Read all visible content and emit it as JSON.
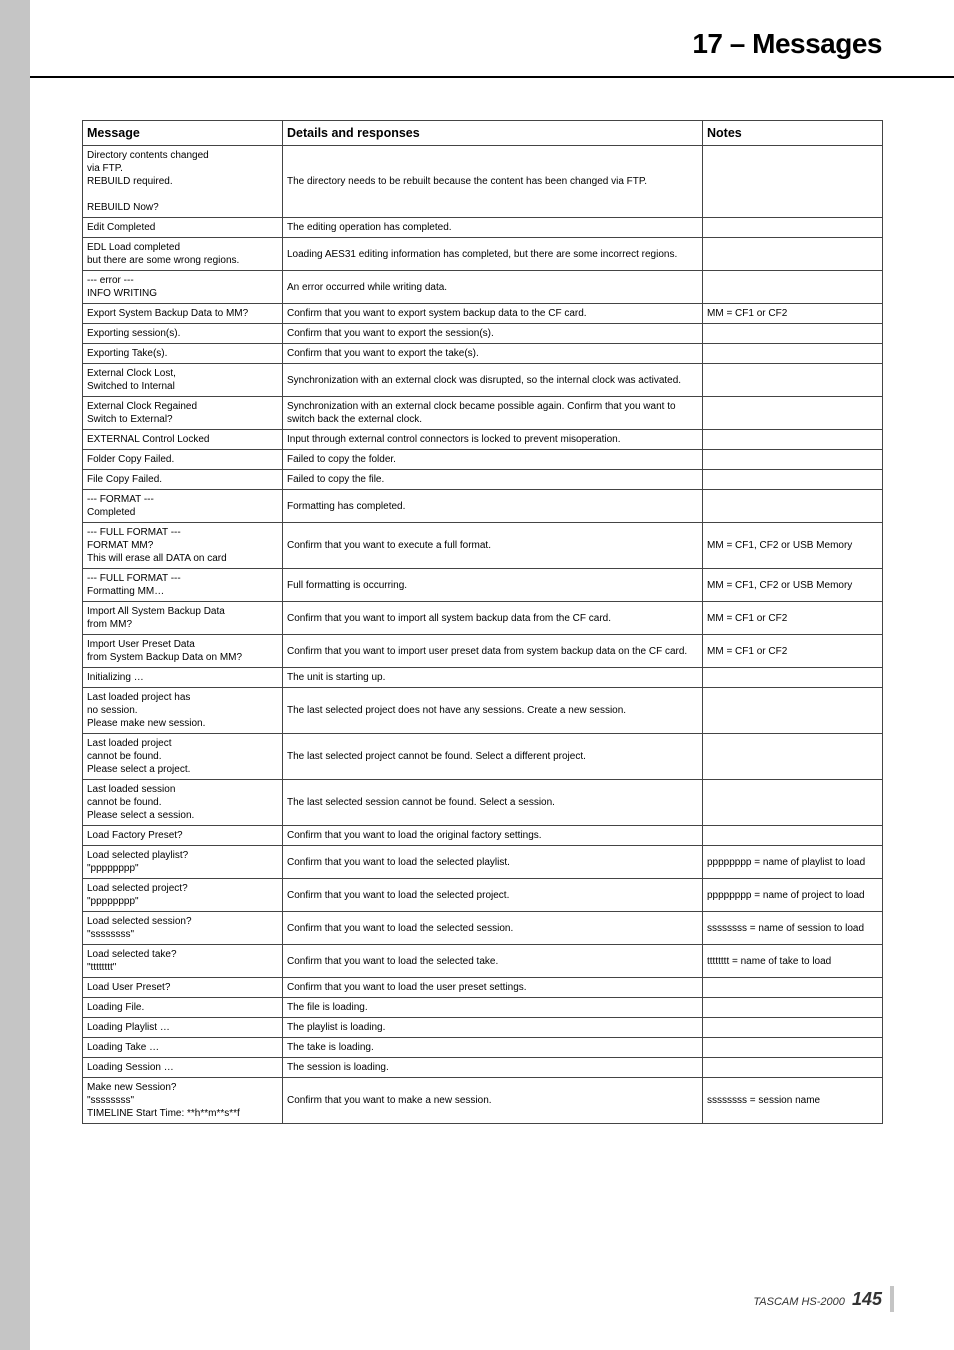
{
  "header": {
    "title": "17 – Messages"
  },
  "table": {
    "headers": [
      "Message",
      "Details and responses",
      "Notes"
    ],
    "rows": [
      {
        "msg": "Directory contents changed\nvia FTP.\nREBUILD required.\n\nREBUILD Now?",
        "det": "The directory needs to be rebuilt because the content has been changed via FTP.",
        "note": ""
      },
      {
        "msg": "Edit Completed",
        "det": "The editing operation has completed.",
        "note": ""
      },
      {
        "msg": "EDL Load completed\nbut there are some wrong regions.",
        "det": "Loading AES31 editing information has completed, but there are some incorrect regions.",
        "note": ""
      },
      {
        "msg": "--- error ---\nINFO WRITING",
        "det": "An error occurred while writing data.",
        "note": ""
      },
      {
        "msg": "Export System Backup Data to MM?",
        "det": "Confirm that you want to export system backup data to the CF card.",
        "note": "MM = CF1 or CF2"
      },
      {
        "msg": "Exporting session(s).",
        "det": "Confirm that you want to export the session(s).",
        "note": ""
      },
      {
        "msg": "Exporting Take(s).",
        "det": "Confirm that you want to export the take(s).",
        "note": ""
      },
      {
        "msg": "External Clock Lost,\nSwitched to Internal",
        "det": "Synchronization with an external clock was disrupted, so the internal clock was activated.",
        "note": ""
      },
      {
        "msg": "External Clock Regained\nSwitch to External?",
        "det": "Synchronization with an external clock became possible again. Confirm that you want to switch back the external clock.",
        "note": ""
      },
      {
        "msg": "EXTERNAL Control Locked",
        "det": "Input through external control connectors is locked to prevent misoperation.",
        "note": ""
      },
      {
        "msg": "Folder Copy Failed.",
        "det": "Failed to copy the folder.",
        "note": ""
      },
      {
        "msg": "File Copy Failed.",
        "det": "Failed to copy the file.",
        "note": ""
      },
      {
        "msg": "--- FORMAT ---\nCompleted",
        "det": "Formatting has completed.",
        "note": ""
      },
      {
        "msg": "--- FULL FORMAT ---\nFORMAT MM?\nThis will erase all DATA on card",
        "det": "Confirm that you want to execute a full format.",
        "note": "MM = CF1, CF2 or USB Memory"
      },
      {
        "msg": "--- FULL FORMAT ---\nFormatting MM…",
        "det": "Full formatting is occurring.",
        "note": "MM = CF1, CF2 or USB Memory"
      },
      {
        "msg": "Import All System Backup Data\nfrom MM?",
        "det": "Confirm that you want to import all system backup data from the CF card.",
        "note": "MM = CF1 or CF2"
      },
      {
        "msg": "Import User Preset Data\nfrom System Backup Data on MM?",
        "det": "Confirm that you want to import user preset data from system backup data on the CF card.",
        "note": "MM = CF1 or CF2"
      },
      {
        "msg": "Initializing …",
        "det": "The unit is starting up.",
        "note": ""
      },
      {
        "msg": "Last loaded project has\nno session.\nPlease make new session.",
        "det": "The last selected project does not have any sessions. Create a new session.",
        "note": ""
      },
      {
        "msg": "Last loaded project\ncannot be found.\nPlease select a project.",
        "det": "The last selected project cannot be found. Select a different project.",
        "note": ""
      },
      {
        "msg": "Last loaded session\ncannot be found.\nPlease select a session.",
        "det": "The last selected session cannot be found. Select a session.",
        "note": ""
      },
      {
        "msg": "Load Factory Preset?",
        "det": "Confirm that you want to load the original factory settings.",
        "note": ""
      },
      {
        "msg": "Load selected playlist?\n\"pppppppp\"",
        "det": "Confirm that you want to load the selected playlist.",
        "note": "pppppppp = name of playlist to load"
      },
      {
        "msg": "Load selected project?\n\"pppppppp\"",
        "det": "Confirm that you want to load the selected project.",
        "note": "pppppppp = name of project to load"
      },
      {
        "msg": "Load selected session?\n\"ssssssss\"",
        "det": "Confirm that you want to load the selected session.",
        "note": "ssssssss = name of session to load"
      },
      {
        "msg": "Load selected take?\n\"tttttttt\"",
        "det": "Confirm that you want to load the selected take.",
        "note": "tttttttt = name of take to load"
      },
      {
        "msg": "Load User Preset?",
        "det": "Confirm that you want to load the user preset settings.",
        "note": ""
      },
      {
        "msg": "Loading File.",
        "det": "The file is loading.",
        "note": ""
      },
      {
        "msg": "Loading Playlist …",
        "det": "The playlist is loading.",
        "note": ""
      },
      {
        "msg": "Loading Take …",
        "det": "The take is loading.",
        "note": ""
      },
      {
        "msg": "Loading Session …",
        "det": "The session is loading.",
        "note": ""
      },
      {
        "msg": "Make new Session?\n\"ssssssss\"\nTIMELINE Start Time: **h**m**s**f",
        "det": "Confirm that you want to make a new session.",
        "note": "ssssssss = session name"
      }
    ]
  },
  "footer": {
    "product": "TASCAM HS-2000",
    "page": "145"
  }
}
